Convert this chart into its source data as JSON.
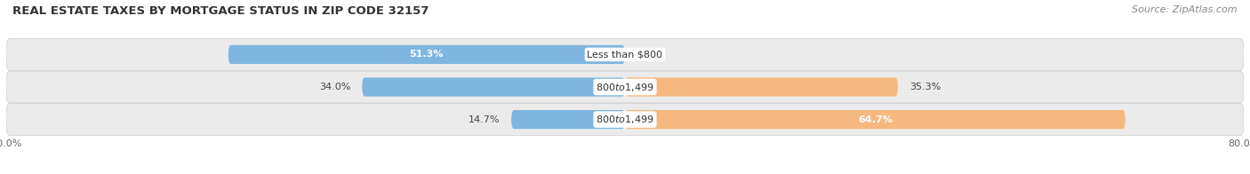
{
  "title": "REAL ESTATE TAXES BY MORTGAGE STATUS IN ZIP CODE 32157",
  "source": "Source: ZipAtlas.com",
  "rows": [
    {
      "label": "Less than $800",
      "without_mortgage": 51.3,
      "with_mortgage": 0.0,
      "wo_label_inside": true,
      "wi_label_inside": false
    },
    {
      "label": "$800 to $1,499",
      "without_mortgage": 34.0,
      "with_mortgage": 35.3,
      "wo_label_inside": false,
      "wi_label_inside": false
    },
    {
      "label": "$800 to $1,499",
      "without_mortgage": 14.7,
      "with_mortgage": 64.7,
      "wo_label_inside": false,
      "wi_label_inside": true
    }
  ],
  "xlim": [
    -80,
    80
  ],
  "color_without": "#7EB6E0",
  "color_with": "#F5B97F",
  "bg_row": "#EBEBEB",
  "bg_row_inner": "#F5F5F5",
  "bar_height": 0.58,
  "title_fontsize": 9.5,
  "source_fontsize": 8,
  "label_fontsize": 8,
  "value_fontsize": 8,
  "tick_fontsize": 8,
  "legend_fontsize": 8
}
